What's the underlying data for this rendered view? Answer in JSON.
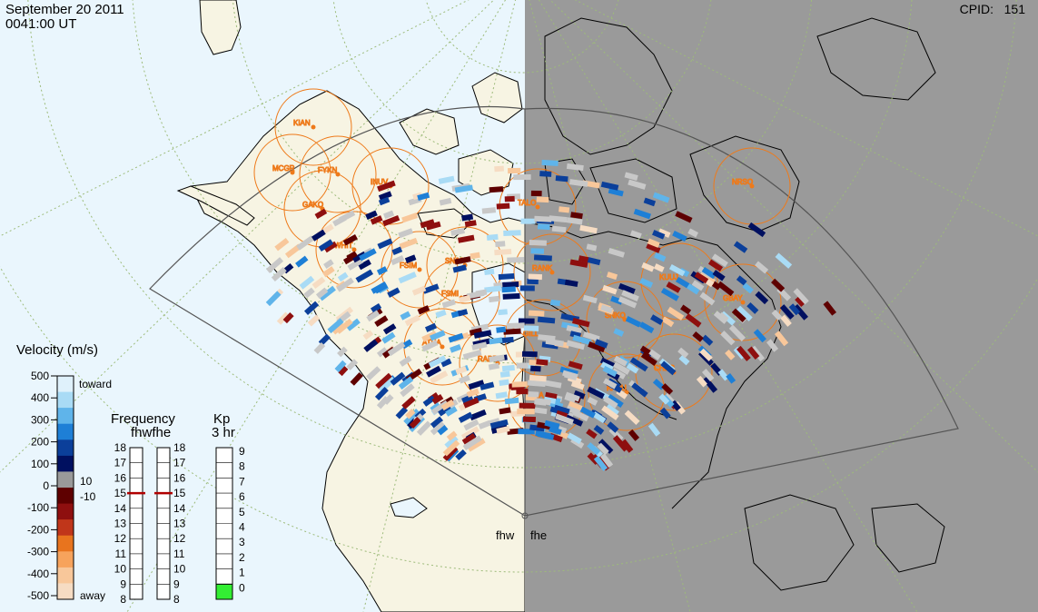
{
  "header": {
    "date": "September 20 2011",
    "time": "0041:00 UT",
    "cpid_label": "CPID:",
    "cpid_value": "151"
  },
  "velocity_scale": {
    "title": "Velocity (m/s)",
    "ticks": [
      "500",
      "400",
      "300",
      "200",
      "100",
      "0",
      "-100",
      "-200",
      "-300",
      "-400",
      "-500"
    ],
    "toward_label": "toward",
    "away_label": "away",
    "mid_labels": [
      "10",
      "-10"
    ],
    "colors": [
      "#dff1fb",
      "#a9dbf5",
      "#5fb4ea",
      "#1e7fd6",
      "#0b3f9a",
      "#001060",
      "#9a9a9a",
      "#5e0000",
      "#8e0f0f",
      "#c0361a",
      "#e8741e",
      "#f7a35c",
      "#f8c79a",
      "#f6dcc3"
    ]
  },
  "frequency_scale": {
    "title": "Frequency",
    "subtitle": "fhwfhe",
    "ticks": [
      "18",
      "17",
      "16",
      "15",
      "14",
      "13",
      "12",
      "11",
      "10",
      "9",
      "8"
    ],
    "marker_value": 15,
    "marker_color": "#b00000"
  },
  "kp_scale": {
    "title": "Kp",
    "subtitle": "3 hr",
    "ticks": [
      "9",
      "8",
      "7",
      "6",
      "5",
      "4",
      "3",
      "2",
      "1",
      "0"
    ],
    "value": 1,
    "fill_color": "#33ee33"
  },
  "radars": [
    "fhw",
    "fhe"
  ],
  "stations": [
    "KIAN",
    "MCGR",
    "FYKN",
    "INUV",
    "GAKO",
    "WHIT",
    "FSIM",
    "SNAP",
    "FSMI",
    "TALO",
    "RANK",
    "KUUJ",
    "GBAY",
    "NRSQ",
    "SNKQ",
    "GILL",
    "ATHA",
    "RABB",
    "PINA",
    "KAPU",
    "CHBG"
  ],
  "colors": {
    "ocean": "#eaf6fd",
    "land": "#f7f4e3",
    "night": "#9a9a9a",
    "coast": "#000000",
    "grid": "#9dbb7a",
    "station_circle": "#ee7a1a",
    "fov": "#555555"
  }
}
